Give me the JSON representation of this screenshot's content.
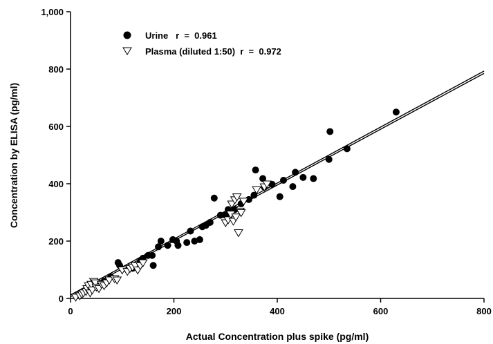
{
  "chart_data": {
    "type": "scatter",
    "title": "",
    "xlabel": "Actual Concentration plus spike (pg/ml)",
    "ylabel": "Concentration by ELISA (pg/ml)",
    "xlim": [
      0,
      800
    ],
    "ylim": [
      0,
      1000
    ],
    "xticks": [
      "0",
      "200",
      "400",
      "600",
      "800"
    ],
    "yticks": [
      "0",
      "200",
      "400",
      "600",
      "800",
      "1,000"
    ],
    "grid": false,
    "legend_position": "top-left",
    "series": [
      {
        "name": "Urine   r  =  0.961",
        "marker": "filled-circle",
        "color": "#000000",
        "points": [
          [
            20,
            15
          ],
          [
            35,
            30
          ],
          [
            50,
            45
          ],
          [
            65,
            60
          ],
          [
            78,
            75
          ],
          [
            92,
            125
          ],
          [
            95,
            115
          ],
          [
            110,
            100
          ],
          [
            120,
            105
          ],
          [
            135,
            130
          ],
          [
            140,
            140
          ],
          [
            150,
            150
          ],
          [
            158,
            150
          ],
          [
            160,
            115
          ],
          [
            170,
            180
          ],
          [
            175,
            200
          ],
          [
            188,
            185
          ],
          [
            198,
            205
          ],
          [
            205,
            200
          ],
          [
            208,
            185
          ],
          [
            225,
            195
          ],
          [
            232,
            235
          ],
          [
            240,
            200
          ],
          [
            250,
            205
          ],
          [
            255,
            250
          ],
          [
            262,
            255
          ],
          [
            270,
            265
          ],
          [
            278,
            350
          ],
          [
            290,
            290
          ],
          [
            300,
            290
          ],
          [
            305,
            310
          ],
          [
            318,
            310
          ],
          [
            330,
            330
          ],
          [
            345,
            345
          ],
          [
            355,
            360
          ],
          [
            358,
            448
          ],
          [
            372,
            418
          ],
          [
            375,
            388
          ],
          [
            390,
            398
          ],
          [
            405,
            355
          ],
          [
            412,
            412
          ],
          [
            430,
            390
          ],
          [
            435,
            440
          ],
          [
            450,
            422
          ],
          [
            470,
            418
          ],
          [
            500,
            485
          ],
          [
            502,
            582
          ],
          [
            535,
            522
          ],
          [
            630,
            650
          ]
        ]
      },
      {
        "name": "Plasma (diluted 1:50)  r  =  0.972",
        "marker": "open-triangle-down",
        "color": "#000000",
        "points": [
          [
            10,
            5
          ],
          [
            18,
            10
          ],
          [
            22,
            15
          ],
          [
            25,
            20
          ],
          [
            30,
            25
          ],
          [
            32,
            35
          ],
          [
            35,
            45
          ],
          [
            38,
            20
          ],
          [
            40,
            50
          ],
          [
            42,
            30
          ],
          [
            45,
            60
          ],
          [
            48,
            55
          ],
          [
            50,
            40
          ],
          [
            55,
            35
          ],
          [
            60,
            50
          ],
          [
            65,
            45
          ],
          [
            70,
            55
          ],
          [
            75,
            65
          ],
          [
            85,
            70
          ],
          [
            90,
            65
          ],
          [
            100,
            100
          ],
          [
            110,
            95
          ],
          [
            115,
            105
          ],
          [
            120,
            110
          ],
          [
            125,
            115
          ],
          [
            130,
            100
          ],
          [
            135,
            115
          ],
          [
            140,
            125
          ],
          [
            300,
            265
          ],
          [
            305,
            275
          ],
          [
            310,
            295
          ],
          [
            312,
            330
          ],
          [
            315,
            270
          ],
          [
            318,
            345
          ],
          [
            320,
            285
          ],
          [
            322,
            355
          ],
          [
            325,
            230
          ],
          [
            328,
            305
          ],
          [
            330,
            300
          ],
          [
            335,
            340
          ],
          [
            360,
            380
          ],
          [
            375,
            390
          ],
          [
            380,
            400
          ]
        ]
      }
    ],
    "regression_lines": [
      {
        "series": "Urine   r  =  0.961",
        "x": [
          0,
          800
        ],
        "y": [
          12,
          793
        ]
      },
      {
        "series": "Plasma (diluted 1:50)  r  =  0.972",
        "x": [
          0,
          800
        ],
        "y": [
          6,
          785
        ]
      }
    ]
  }
}
